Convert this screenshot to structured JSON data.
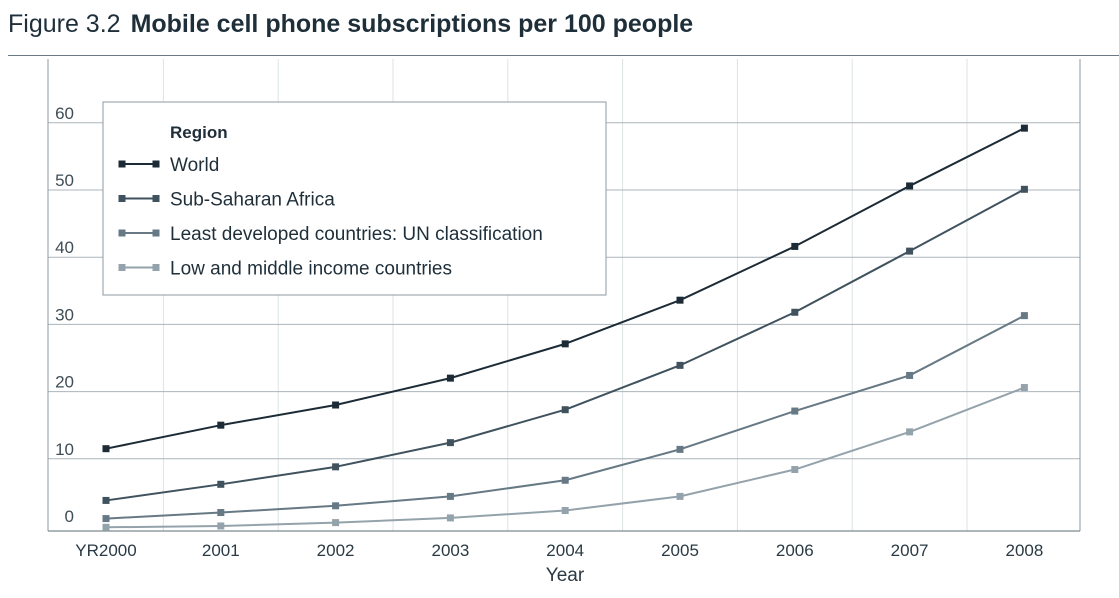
{
  "figure": {
    "number": "Figure 3.2",
    "title": "Mobile cell phone subscriptions per 100 people"
  },
  "chart_data": {
    "type": "line",
    "title": "Mobile cell phone subscriptions per 100 people",
    "xlabel": "Year",
    "ylabel": "",
    "categories": [
      "YR2000",
      "2001",
      "2002",
      "2003",
      "2004",
      "2005",
      "2006",
      "2007",
      "2008"
    ],
    "yticks": [
      0,
      10,
      20,
      30,
      40,
      50,
      60
    ],
    "ylim": [
      0,
      70
    ],
    "grid": true,
    "legend": {
      "title": "Region",
      "placement": "top-left"
    },
    "series": [
      {
        "name": "World",
        "color": "#1c2b35",
        "values": [
          12.1,
          15.6,
          18.6,
          22.6,
          27.7,
          34.2,
          42.2,
          51.2,
          59.8
        ]
      },
      {
        "name": "Sub-Saharan Africa",
        "color": "#3f525e",
        "values": [
          4.4,
          6.8,
          9.4,
          13.0,
          17.9,
          24.5,
          32.4,
          41.5,
          50.7
        ]
      },
      {
        "name": "Least developed countries: UN classification",
        "color": "#667985",
        "values": [
          1.7,
          2.6,
          3.6,
          5.0,
          7.4,
          12.0,
          17.7,
          23.0,
          31.9
        ]
      },
      {
        "name": "Low and middle income countries",
        "color": "#94a3ab",
        "values": [
          0.4,
          0.6,
          1.1,
          1.8,
          2.9,
          5.0,
          9.0,
          14.6,
          21.2
        ]
      }
    ]
  }
}
